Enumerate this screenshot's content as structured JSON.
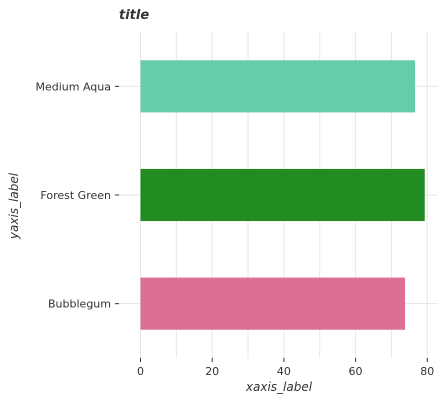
{
  "chart_data": {
    "type": "bar",
    "orientation": "horizontal",
    "title": "title",
    "xlabel": "xaxis_label",
    "ylabel": "yaxis_label",
    "categories": [
      "Bubblegum",
      "Forest Green",
      "Medium Aqua"
    ],
    "values": [
      73.8,
      79.3,
      76.6
    ],
    "colors": [
      "#db7093",
      "#228b22",
      "#66cdaa"
    ],
    "xlim": [
      -6,
      83
    ],
    "xticks": [
      0,
      20,
      40,
      60,
      80
    ],
    "grid": true,
    "legend": "none"
  }
}
